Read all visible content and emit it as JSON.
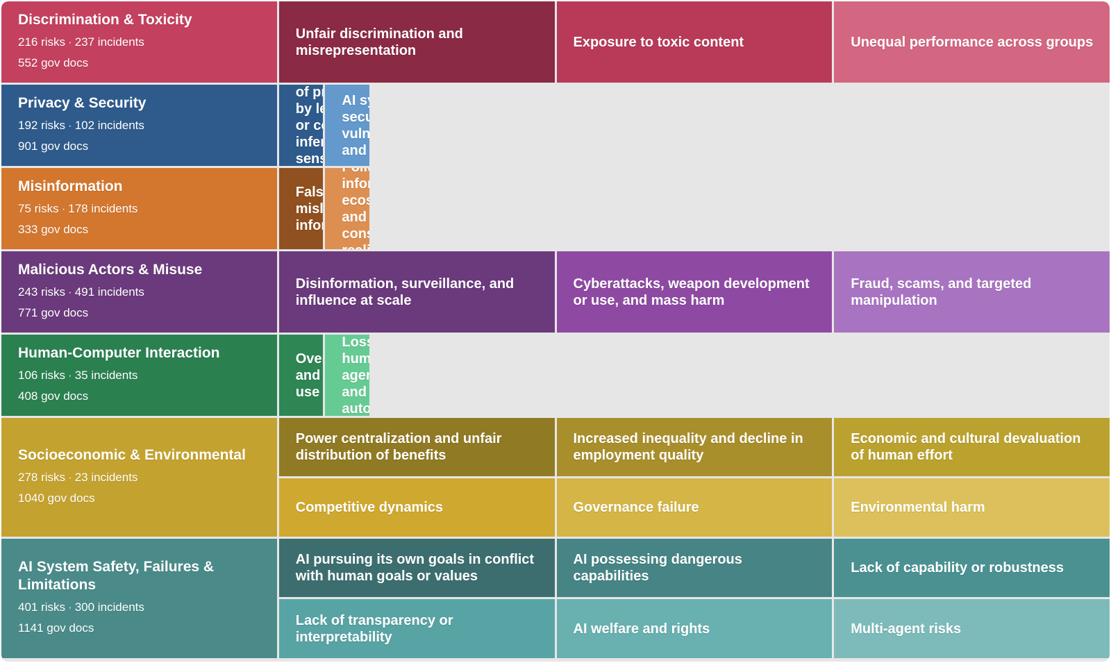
{
  "categories": [
    {
      "title": "Discrimination & Toxicity",
      "risks": "216 risks",
      "incidents": "237 incidents",
      "docs": "552 gov docs",
      "color": "#c4405f",
      "subs": [
        {
          "label": "Unfair discrimination and misrepresentation",
          "color": "#8a2a44"
        },
        {
          "label": "Exposure to toxic content",
          "color": "#b83a58"
        },
        {
          "label": "Unequal performance across groups",
          "color": "#d36680"
        }
      ]
    },
    {
      "title": "Privacy & Security",
      "risks": "192 risks",
      "incidents": "102 incidents",
      "docs": "901 gov docs",
      "color": "#2e5b8c",
      "subs": [
        {
          "label": "Compromise of privacy by leaking or correctly inferring sensitive information",
          "color": "#2e5b8c"
        },
        {
          "label": "AI system security vulnerabilities and attacks",
          "color": "#6399cc"
        }
      ]
    },
    {
      "title": "Misinformation",
      "risks": "75 risks",
      "incidents": "178 incidents",
      "docs": "333 gov docs",
      "color": "#d3762e",
      "subs": [
        {
          "label": "False or misleading information",
          "color": "#91501f"
        },
        {
          "label": "Pollution of information ecosystem and loss of consensus reality",
          "color": "#dd8f52"
        }
      ]
    },
    {
      "title": "Malicious Actors & Misuse",
      "risks": "243 risks",
      "incidents": "491 incidents",
      "docs": "771 gov docs",
      "color": "#6a3a7c",
      "subs": [
        {
          "label": "Disinformation, surveillance, and influence at scale",
          "color": "#6a3a7c"
        },
        {
          "label": "Cyberattacks, weapon development or use, and mass harm",
          "color": "#8e4aa3"
        },
        {
          "label": "Fraud, scams, and targeted manipulation",
          "color": "#a874c1"
        }
      ]
    },
    {
      "title": "Human-Computer Interaction",
      "risks": "106 risks",
      "incidents": "35 incidents",
      "docs": "408 gov docs",
      "color": "#2b8050",
      "subs": [
        {
          "label": "Overreliance and unsafe use",
          "color": "#2e8655"
        },
        {
          "label": "Loss of human agency and autonomy",
          "color": "#66cb93"
        }
      ]
    },
    {
      "title": "Socioeconomic & Environmental",
      "risks": "278 risks",
      "incidents": "23 incidents",
      "docs": "1040 gov docs",
      "color": "#c4a22f",
      "subs": [
        {
          "label": "Power centralization and unfair distribution of benefits",
          "color": "#917a24"
        },
        {
          "label": "Increased inequality and decline in employment quality",
          "color": "#a98e2c"
        },
        {
          "label": "Economic and cultural devaluation of human effort",
          "color": "#bba22f"
        },
        {
          "label": "Competitive dynamics",
          "color": "#cfa830"
        },
        {
          "label": "Governance failure",
          "color": "#d4b546"
        },
        {
          "label": "Environmental harm",
          "color": "#dcc05b"
        }
      ]
    },
    {
      "title": "AI System Safety, Failures & Limitations",
      "risks": "401 risks",
      "incidents": "300 incidents",
      "docs": "1141 gov docs",
      "color": "#4a8b8a",
      "subs": [
        {
          "label": "AI pursuing its own goals in conflict with human goals or values",
          "color": "#3d6e6f"
        },
        {
          "label": "AI possessing dangerous capabilities",
          "color": "#478485"
        },
        {
          "label": "Lack of capability or robustness",
          "color": "#4b9192"
        },
        {
          "label": "Lack of transparency or interpretability",
          "color": "#58a3a4"
        },
        {
          "label": "AI welfare and rights",
          "color": "#69b0b0"
        },
        {
          "label": "Multi-agent risks",
          "color": "#7dbaba"
        }
      ]
    }
  ]
}
